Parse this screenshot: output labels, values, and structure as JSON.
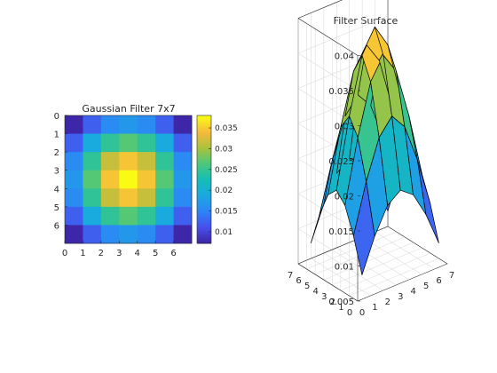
{
  "figure": {
    "background": "#ffffff"
  },
  "chart_data": [
    {
      "type": "heatmap",
      "title": "Gaussian Filter 7x7",
      "xlabel": "",
      "ylabel": "",
      "x_ticks": [
        "0",
        "1",
        "2",
        "3",
        "4",
        "5",
        "6"
      ],
      "y_ticks": [
        "0",
        "1",
        "2",
        "3",
        "4",
        "5",
        "6"
      ],
      "colormap": "parula",
      "colorbar": {
        "range": [
          0.0072,
          0.038
        ],
        "ticks": [
          0.01,
          0.015,
          0.02,
          0.025,
          0.03,
          0.035
        ],
        "tick_labels": [
          "0.01",
          "0.015",
          "0.02",
          "0.025",
          "0.03",
          "0.035"
        ]
      },
      "values": [
        [
          0.0072,
          0.012,
          0.0156,
          0.017,
          0.0156,
          0.012,
          0.0072
        ],
        [
          0.012,
          0.019,
          0.0245,
          0.0268,
          0.0245,
          0.019,
          0.012
        ],
        [
          0.0156,
          0.0245,
          0.0317,
          0.0347,
          0.0317,
          0.0245,
          0.0156
        ],
        [
          0.017,
          0.0268,
          0.0347,
          0.038,
          0.0347,
          0.0268,
          0.017
        ],
        [
          0.0156,
          0.0245,
          0.0317,
          0.0347,
          0.0317,
          0.0245,
          0.0156
        ],
        [
          0.012,
          0.019,
          0.0245,
          0.0268,
          0.0245,
          0.019,
          0.012
        ],
        [
          0.0072,
          0.012,
          0.0156,
          0.017,
          0.0156,
          0.012,
          0.0072
        ]
      ]
    },
    {
      "type": "surface",
      "title": "Filter Surface",
      "colormap": "parula",
      "z_ticks": [
        "0.005",
        "0.01",
        "0.015",
        "0.02",
        "0.025",
        "0.03",
        "0.035",
        "0.04"
      ],
      "x_ticks": [
        "0",
        "1",
        "2",
        "3",
        "4",
        "5",
        "6",
        "7"
      ],
      "y_ticks": [
        "0",
        "1",
        "2",
        "3",
        "4",
        "5",
        "6",
        "7"
      ],
      "zlim": [
        0.005,
        0.04
      ],
      "grid": true,
      "values_ref": "same 7x7 kernel as heatmap"
    }
  ]
}
